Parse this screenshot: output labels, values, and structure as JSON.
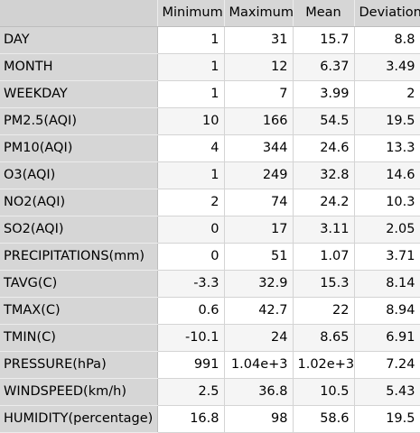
{
  "table": {
    "columns": [
      "Minimum",
      "Maximum",
      "Mean",
      "Deviation"
    ],
    "rows": [
      {
        "label": "DAY",
        "values": [
          "1",
          "31",
          "15.7",
          "8.8"
        ]
      },
      {
        "label": "MONTH",
        "values": [
          "1",
          "12",
          "6.37",
          "3.49"
        ]
      },
      {
        "label": "WEEKDAY",
        "values": [
          "1",
          "7",
          "3.99",
          "2"
        ]
      },
      {
        "label": "PM2.5(AQI)",
        "values": [
          "10",
          "166",
          "54.5",
          "19.5"
        ]
      },
      {
        "label": "PM10(AQI)",
        "values": [
          "4",
          "344",
          "24.6",
          "13.3"
        ]
      },
      {
        "label": "O3(AQI)",
        "values": [
          "1",
          "249",
          "32.8",
          "14.6"
        ]
      },
      {
        "label": "NO2(AQI)",
        "values": [
          "2",
          "74",
          "24.2",
          "10.3"
        ]
      },
      {
        "label": "SO2(AQI)",
        "values": [
          "0",
          "17",
          "3.11",
          "2.05"
        ]
      },
      {
        "label": "PRECIPITATIONS(mm)",
        "values": [
          "0",
          "51",
          "1.07",
          "3.71"
        ]
      },
      {
        "label": "TAVG(C)",
        "values": [
          "-3.3",
          "32.9",
          "15.3",
          "8.14"
        ]
      },
      {
        "label": "TMAX(C)",
        "values": [
          "0.6",
          "42.7",
          "22",
          "8.94"
        ]
      },
      {
        "label": "TMIN(C)",
        "values": [
          "-10.1",
          "24",
          "8.65",
          "6.91"
        ]
      },
      {
        "label": "PRESSURE(hPa)",
        "values": [
          "991",
          "1.04e+3",
          "1.02e+3",
          "7.24"
        ]
      },
      {
        "label": "WINDSPEED(km/h)",
        "values": [
          "2.5",
          "36.8",
          "10.5",
          "5.43"
        ]
      },
      {
        "label": "HUMIDITY(percentage)",
        "values": [
          "16.8",
          "98",
          "58.6",
          "19.5"
        ]
      }
    ]
  }
}
